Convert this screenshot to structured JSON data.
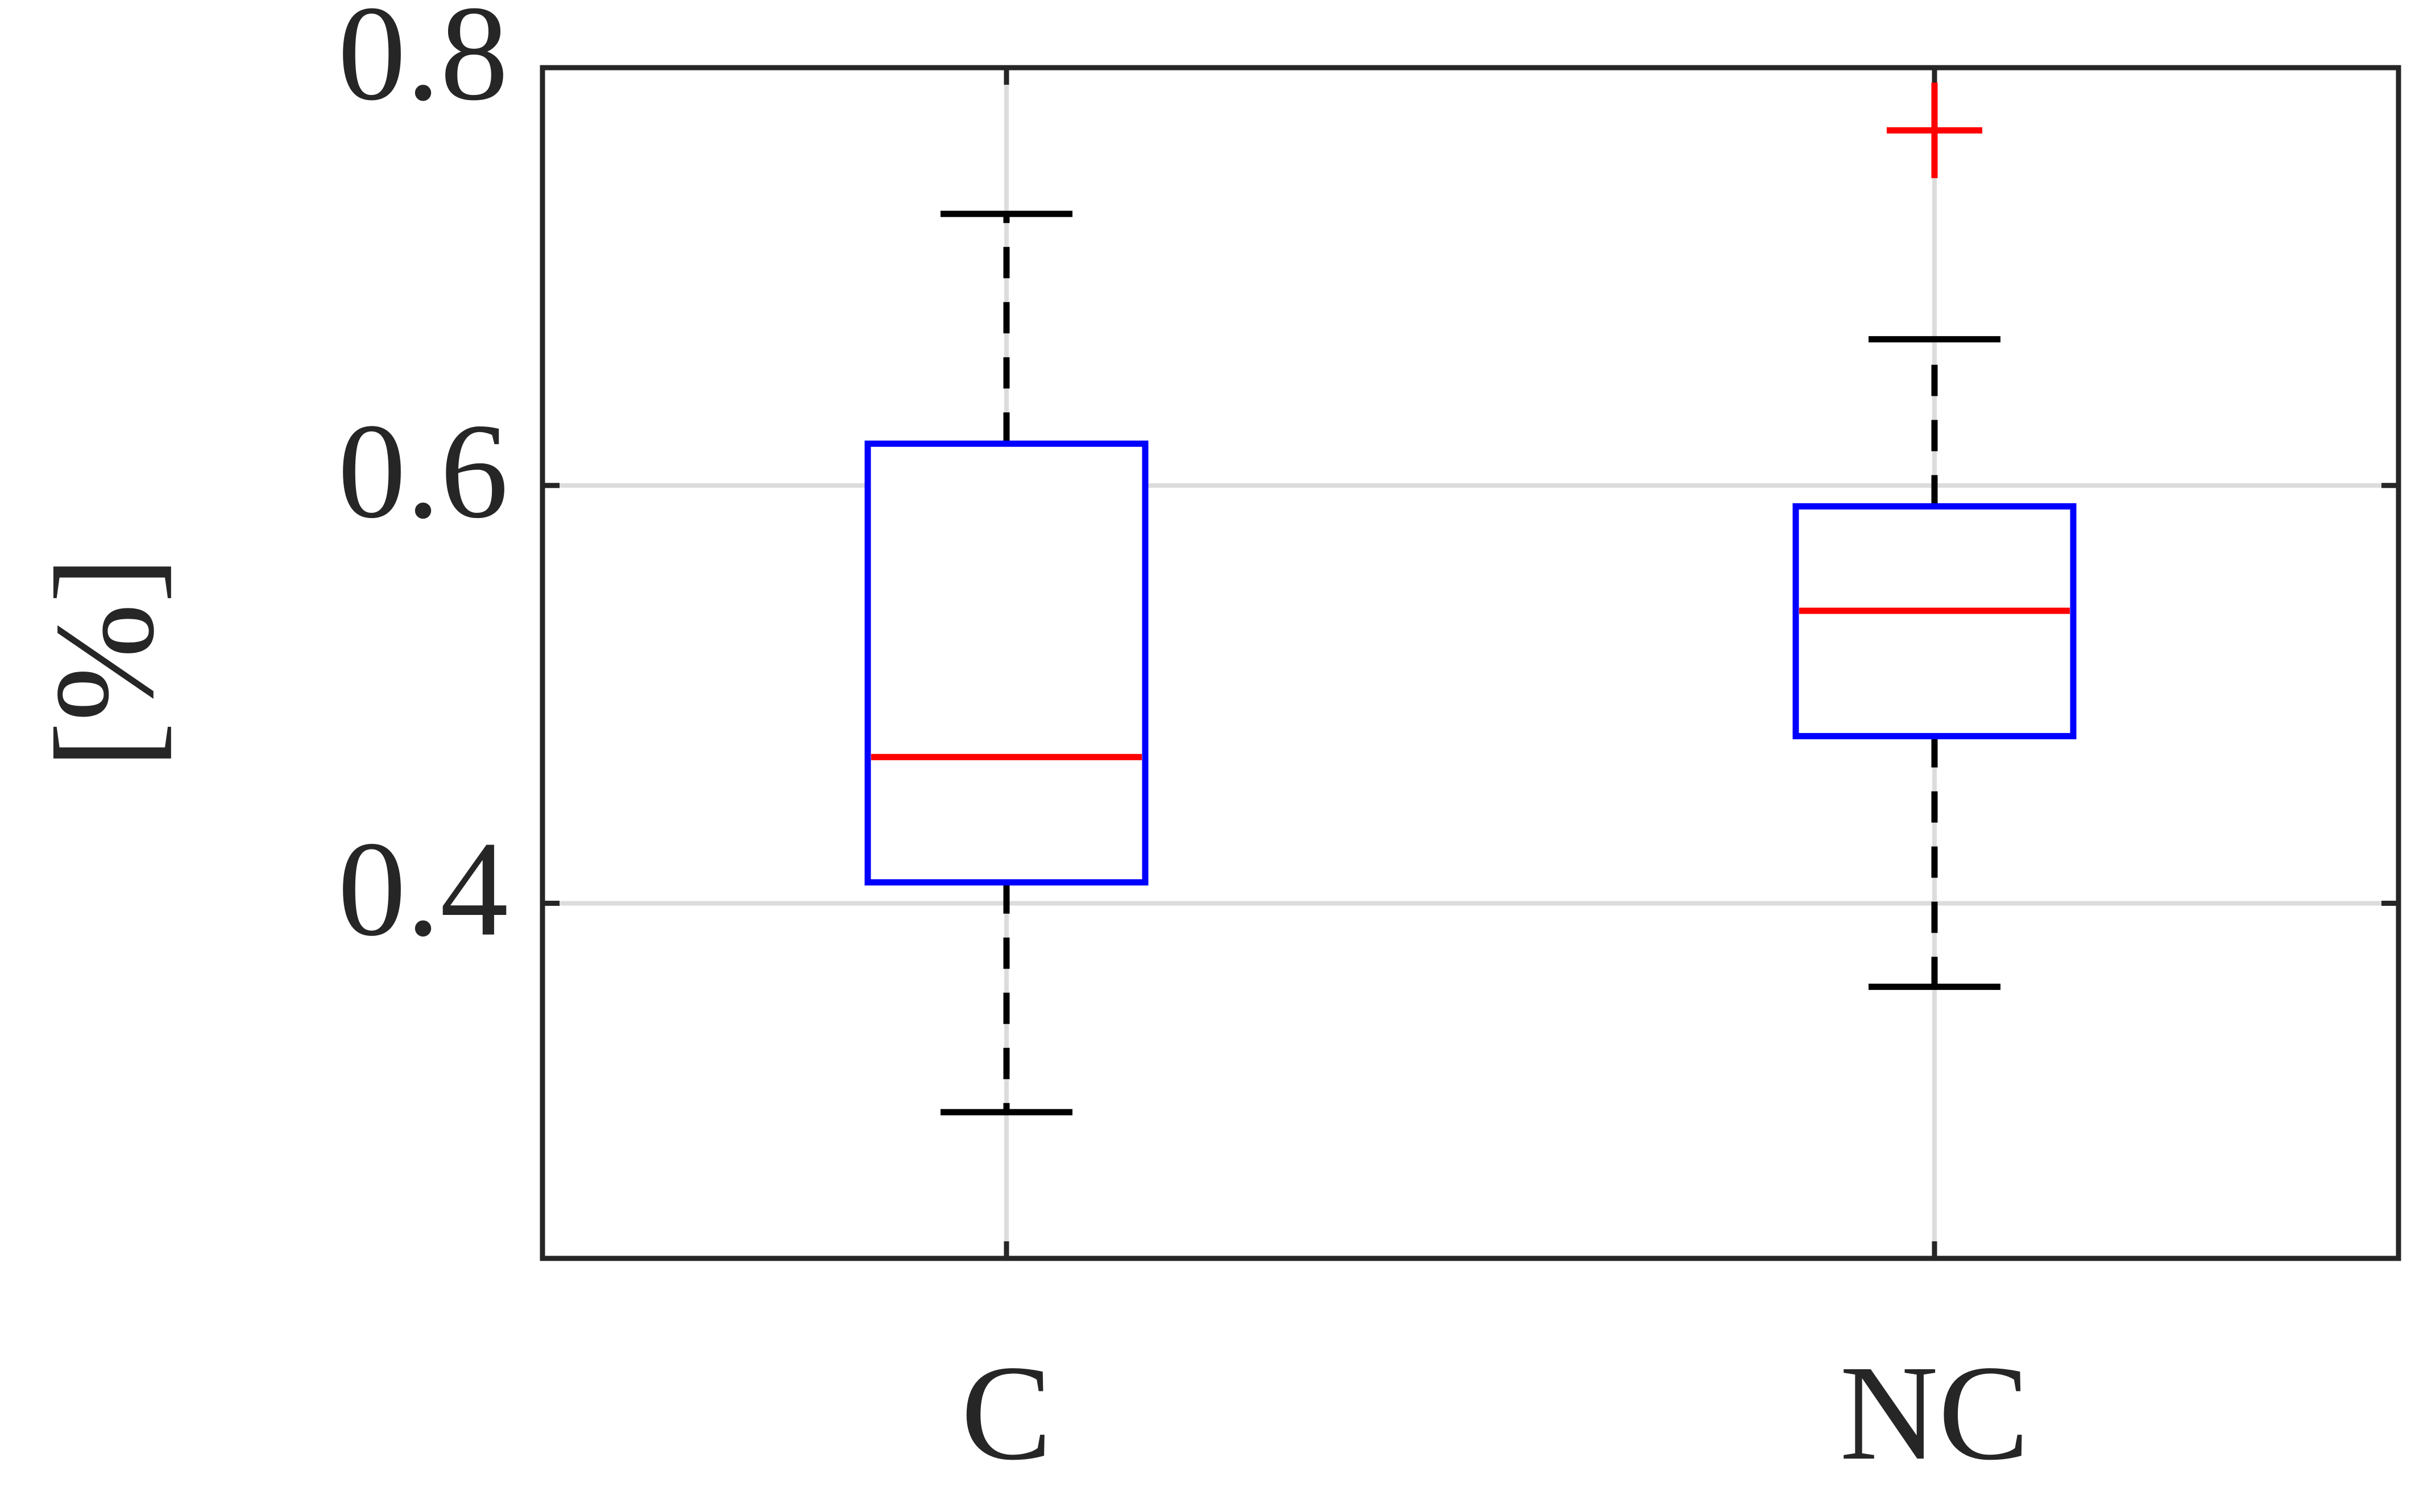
{
  "chart_data": {
    "type": "box",
    "y_label": "[%]",
    "categories": [
      "C",
      "NC"
    ],
    "boxes": [
      {
        "min": 0.3,
        "q1": 0.41,
        "median": 0.47,
        "q3": 0.62,
        "max": 0.73,
        "outliers": []
      },
      {
        "min": 0.36,
        "q1": 0.48,
        "median": 0.54,
        "q3": 0.59,
        "max": 0.67,
        "outliers": [
          0.77
        ]
      }
    ],
    "box_color": "#0000ff",
    "median_color": "#ff0000",
    "whisker_color": "#000000",
    "outlier_color": "#ff0000",
    "ylim": [
      0.23,
      0.8
    ],
    "yticks": [
      0.4,
      0.6,
      0.8
    ],
    "grid": true
  }
}
